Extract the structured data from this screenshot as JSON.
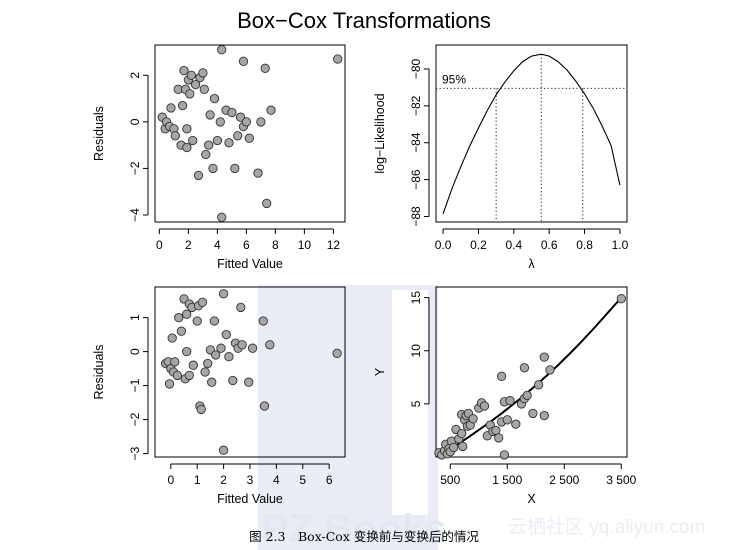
{
  "figure": {
    "title": "Box−Cox Transformations",
    "caption": "图 2.3　Box-Cox 变换前与变换后的情况",
    "watermark": "云栖社区 yq.aliyun.com",
    "watermark_logo": "PZ Books"
  },
  "colors": {
    "point_fill": "#a6a6a6",
    "point_stroke": "#333333",
    "axis": "#000000"
  },
  "chart_data": [
    {
      "id": "resid_before",
      "type": "scatter",
      "xlabel": "Fitted Value",
      "ylabel": "Residuals",
      "xlim": [
        -0.3,
        12.8
      ],
      "ylim": [
        -4.3,
        3.3
      ],
      "xticks": [
        0,
        2,
        4,
        6,
        8,
        10,
        12
      ],
      "yticks": [
        -4,
        -2,
        0,
        2
      ],
      "points": [
        [
          0.2,
          0.2
        ],
        [
          0.4,
          -0.3
        ],
        [
          0.5,
          0.0
        ],
        [
          0.7,
          -0.2
        ],
        [
          0.8,
          0.6
        ],
        [
          1.0,
          -0.3
        ],
        [
          1.1,
          -0.6
        ],
        [
          1.3,
          1.4
        ],
        [
          1.5,
          -1.0
        ],
        [
          1.6,
          0.7
        ],
        [
          1.7,
          2.2
        ],
        [
          1.8,
          1.4
        ],
        [
          1.9,
          -0.3
        ],
        [
          1.9,
          -1.1
        ],
        [
          2.0,
          1.8
        ],
        [
          2.1,
          1.2
        ],
        [
          2.2,
          2.0
        ],
        [
          2.3,
          -0.8
        ],
        [
          2.5,
          1.6
        ],
        [
          2.7,
          -2.3
        ],
        [
          2.8,
          1.9
        ],
        [
          3.0,
          2.1
        ],
        [
          3.1,
          1.4
        ],
        [
          3.2,
          -1.4
        ],
        [
          3.4,
          -1.0
        ],
        [
          3.5,
          0.3
        ],
        [
          3.7,
          -2.0
        ],
        [
          3.8,
          1.0
        ],
        [
          4.0,
          -0.8
        ],
        [
          4.2,
          0.0
        ],
        [
          4.3,
          3.1
        ],
        [
          4.3,
          -4.1
        ],
        [
          4.6,
          0.5
        ],
        [
          4.8,
          -0.9
        ],
        [
          5.0,
          0.4
        ],
        [
          5.2,
          -2.0
        ],
        [
          5.4,
          -0.6
        ],
        [
          5.6,
          0.2
        ],
        [
          5.8,
          -0.2
        ],
        [
          5.8,
          2.6
        ],
        [
          6.0,
          0.0
        ],
        [
          6.2,
          -0.7
        ],
        [
          6.8,
          -2.2
        ],
        [
          7.0,
          0.0
        ],
        [
          7.3,
          2.3
        ],
        [
          7.4,
          -3.5
        ],
        [
          7.7,
          0.5
        ],
        [
          12.3,
          2.7
        ]
      ]
    },
    {
      "id": "profile_lambda",
      "type": "line",
      "xlabel": "λ",
      "ylabel": "log−Likelihood",
      "xlim": [
        -0.04,
        1.04
      ],
      "ylim": [
        -88.3,
        -78.7
      ],
      "xticks": [
        0.0,
        0.2,
        0.4,
        0.6,
        0.8,
        1.0
      ],
      "xtick_labels": [
        "0.0",
        "0.2",
        "0.4",
        "0.6",
        "0.8",
        "1.0"
      ],
      "yticks": [
        -88,
        -86,
        -84,
        -82,
        -80
      ],
      "annotation": "95%",
      "ci_level": -81.05,
      "lambda_lower": 0.3,
      "lambda_hat": 0.555,
      "lambda_upper": 0.79,
      "curve": [
        [
          0.0,
          -87.85
        ],
        [
          0.05,
          -86.5
        ],
        [
          0.1,
          -85.3
        ],
        [
          0.15,
          -84.2
        ],
        [
          0.2,
          -83.2
        ],
        [
          0.25,
          -82.25
        ],
        [
          0.3,
          -81.4
        ],
        [
          0.35,
          -80.7
        ],
        [
          0.4,
          -80.1
        ],
        [
          0.45,
          -79.6
        ],
        [
          0.5,
          -79.3
        ],
        [
          0.555,
          -79.2
        ],
        [
          0.6,
          -79.3
        ],
        [
          0.65,
          -79.6
        ],
        [
          0.7,
          -80.05
        ],
        [
          0.75,
          -80.65
        ],
        [
          0.8,
          -81.35
        ],
        [
          0.85,
          -82.15
        ],
        [
          0.9,
          -83.1
        ],
        [
          0.95,
          -84.15
        ],
        [
          1.0,
          -86.3
        ]
      ]
    },
    {
      "id": "resid_after",
      "type": "scatter",
      "xlabel": "Fitted Value",
      "ylabel": "Residuals",
      "xlim": [
        -0.6,
        6.6
      ],
      "ylim": [
        -3.1,
        1.9
      ],
      "xticks": [
        0,
        1,
        2,
        3,
        4,
        5,
        6
      ],
      "yticks": [
        -3,
        -2,
        -1,
        0,
        1
      ],
      "points": [
        [
          -0.2,
          -0.35
        ],
        [
          -0.1,
          -0.3
        ],
        [
          -0.05,
          -0.95
        ],
        [
          0.0,
          -0.5
        ],
        [
          0.1,
          -0.6
        ],
        [
          0.05,
          0.4
        ],
        [
          0.15,
          -0.3
        ],
        [
          0.25,
          -0.7
        ],
        [
          0.3,
          1.0
        ],
        [
          0.4,
          0.6
        ],
        [
          0.5,
          1.55
        ],
        [
          0.55,
          -0.8
        ],
        [
          0.6,
          0.0
        ],
        [
          0.6,
          1.1
        ],
        [
          0.7,
          1.4
        ],
        [
          0.7,
          -0.7
        ],
        [
          0.8,
          1.3
        ],
        [
          0.85,
          -0.4
        ],
        [
          1.0,
          0.9
        ],
        [
          1.05,
          1.35
        ],
        [
          1.1,
          -1.6
        ],
        [
          1.15,
          -1.7
        ],
        [
          1.2,
          1.45
        ],
        [
          1.3,
          -0.6
        ],
        [
          1.4,
          -0.35
        ],
        [
          1.5,
          0.05
        ],
        [
          1.55,
          -0.9
        ],
        [
          1.65,
          0.9
        ],
        [
          1.7,
          -0.1
        ],
        [
          1.9,
          0.1
        ],
        [
          2.0,
          1.7
        ],
        [
          2.0,
          -2.9
        ],
        [
          2.1,
          0.5
        ],
        [
          2.2,
          -0.15
        ],
        [
          2.35,
          -0.85
        ],
        [
          2.45,
          0.25
        ],
        [
          2.55,
          0.1
        ],
        [
          2.65,
          1.3
        ],
        [
          2.7,
          0.2
        ],
        [
          2.95,
          -0.9
        ],
        [
          3.1,
          0.1
        ],
        [
          3.5,
          0.9
        ],
        [
          3.55,
          -1.6
        ],
        [
          3.75,
          0.2
        ],
        [
          6.3,
          -0.05
        ]
      ]
    },
    {
      "id": "fit_xy",
      "type": "scatter",
      "xlabel": "X",
      "ylabel": "Y",
      "xlim": [
        250,
        3600
      ],
      "ylim": [
        0,
        16
      ],
      "xticks": [
        500,
        1500,
        2500,
        3500
      ],
      "xtick_labels": [
        "500",
        "1 500",
        "2 500",
        "3 500"
      ],
      "yticks": [
        5,
        10,
        15
      ],
      "points": [
        [
          300,
          0.4
        ],
        [
          350,
          0.2
        ],
        [
          400,
          0.6
        ],
        [
          420,
          1.2
        ],
        [
          450,
          0.3
        ],
        [
          480,
          0.8
        ],
        [
          500,
          0.5
        ],
        [
          520,
          1.5
        ],
        [
          560,
          0.9
        ],
        [
          600,
          2.6
        ],
        [
          650,
          1.7
        ],
        [
          700,
          2.2
        ],
        [
          700,
          4.0
        ],
        [
          720,
          1.0
        ],
        [
          750,
          3.5
        ],
        [
          780,
          3.9
        ],
        [
          800,
          2.9
        ],
        [
          820,
          4.1
        ],
        [
          850,
          3.0
        ],
        [
          900,
          3.6
        ],
        [
          1000,
          4.6
        ],
        [
          1050,
          5.1
        ],
        [
          1100,
          4.8
        ],
        [
          1150,
          2.0
        ],
        [
          1200,
          3.0
        ],
        [
          1250,
          2.4
        ],
        [
          1300,
          2.5
        ],
        [
          1350,
          1.8
        ],
        [
          1400,
          3.3
        ],
        [
          1400,
          7.6
        ],
        [
          1450,
          5.2
        ],
        [
          1450,
          0.2
        ],
        [
          1500,
          3.5
        ],
        [
          1550,
          5.3
        ],
        [
          1650,
          3.1
        ],
        [
          1750,
          5.0
        ],
        [
          1800,
          8.4
        ],
        [
          1800,
          5.5
        ],
        [
          1850,
          5.8
        ],
        [
          1950,
          4.1
        ],
        [
          2050,
          6.8
        ],
        [
          2150,
          3.9
        ],
        [
          2150,
          9.4
        ],
        [
          2250,
          8.2
        ],
        [
          3500,
          14.9
        ]
      ],
      "curve": [
        [
          250,
          0.1
        ],
        [
          400,
          0.5
        ],
        [
          600,
          1.1
        ],
        [
          800,
          1.8
        ],
        [
          1000,
          2.55
        ],
        [
          1200,
          3.3
        ],
        [
          1400,
          4.1
        ],
        [
          1600,
          4.95
        ],
        [
          1800,
          5.8
        ],
        [
          2000,
          6.75
        ],
        [
          2200,
          7.7
        ],
        [
          2400,
          8.7
        ],
        [
          2600,
          9.75
        ],
        [
          2800,
          10.85
        ],
        [
          3000,
          12.0
        ],
        [
          3200,
          13.2
        ],
        [
          3400,
          14.4
        ],
        [
          3500,
          15.0
        ]
      ]
    }
  ]
}
